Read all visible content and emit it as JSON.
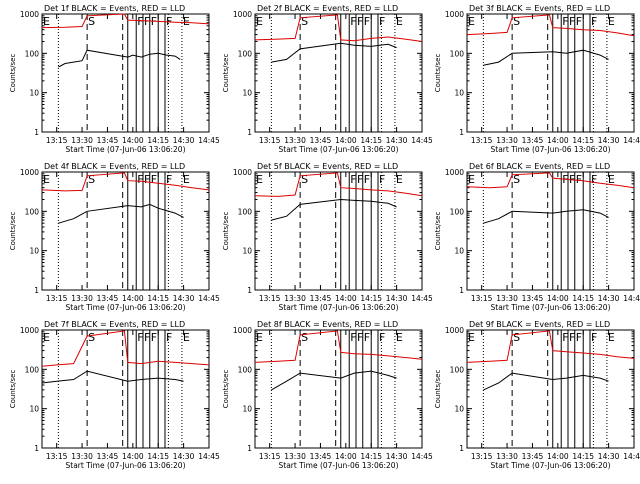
{
  "figure": {
    "panels": [
      {
        "title": "Det 1f BLACK = Events, RED = LLD"
      },
      {
        "title": "Det 2f BLACK = Events, RED = LLD"
      },
      {
        "title": "Det 3f BLACK = Events, RED = LLD"
      },
      {
        "title": "Det 4f BLACK = Events, RED = LLD"
      },
      {
        "title": "Det 5f BLACK = Events, RED = LLD"
      },
      {
        "title": "Det 6f BLACK = Events, RED = LLD"
      },
      {
        "title": "Det 7f BLACK = Events, RED = LLD"
      },
      {
        "title": "Det 8f BLACK = Events, RED = LLD"
      },
      {
        "title": "Det 9f BLACK = Events, RED = LLD"
      }
    ],
    "colors": {
      "events": "#000000",
      "lld": "#dd0000",
      "axes": "#000000"
    }
  },
  "chart_data": {
    "type": "line",
    "yscale": "log",
    "ylabel": "Counts/sec",
    "xlabel": "Start Time (07-Jun-06 13:06:20)",
    "xlim": [
      "13:06:20",
      "14:45:00"
    ],
    "ylim": [
      1,
      1000
    ],
    "x_tick_labels": [
      "13:15",
      "13:30",
      "13:45",
      "14:00",
      "14:15",
      "14:30",
      "14:45"
    ],
    "y_tick_labels": [
      "1",
      "10",
      "100",
      "1000"
    ],
    "marker_labels": [
      {
        "label": "E",
        "time": "13:06:20",
        "style": "dotted"
      },
      {
        "label": "",
        "time": "13:16",
        "style": "dotted"
      },
      {
        "label": "S",
        "time": "13:33",
        "style": "dashed"
      },
      {
        "label": "",
        "time": "13:54",
        "style": "dashed"
      },
      {
        "label": "",
        "time": "13:57",
        "style": "solid"
      },
      {
        "label": "F",
        "time": "14:02",
        "style": "solid"
      },
      {
        "label": "F",
        "time": "14:06",
        "style": "solid"
      },
      {
        "label": "F",
        "time": "14:10",
        "style": "solid"
      },
      {
        "label": "",
        "time": "14:15",
        "style": "solid"
      },
      {
        "label": "F",
        "time": "14:19",
        "style": "solid"
      },
      {
        "label": "",
        "time": "14:21",
        "style": "dotted"
      },
      {
        "label": "E",
        "time": "14:29",
        "style": "dotted"
      }
    ],
    "series": [
      {
        "detector": "1f",
        "segments": [
          {
            "name": "Events",
            "points": [
              [
                "13:16",
                45
              ],
              [
                "13:20",
                55
              ],
              [
                "13:25",
                60
              ],
              [
                "13:30",
                65
              ],
              [
                "13:33",
                120
              ],
              [
                "13:57",
                80
              ],
              [
                "14:00",
                90
              ],
              [
                "14:05",
                80
              ],
              [
                "14:10",
                95
              ],
              [
                "14:15",
                100
              ],
              [
                "14:20",
                90
              ],
              [
                "14:25",
                85
              ],
              [
                "14:28",
                70
              ]
            ]
          },
          {
            "name": "LLD",
            "points": [
              [
                "13:06:20",
                450
              ],
              [
                "13:20",
                460
              ],
              [
                "13:30",
                480
              ],
              [
                "13:33",
                900
              ],
              [
                "13:55",
                1000
              ],
              [
                "13:57",
                700
              ],
              [
                "14:05",
                680
              ],
              [
                "14:15",
                650
              ],
              [
                "14:25",
                620
              ],
              [
                "14:35",
                600
              ],
              [
                "14:45",
                560
              ]
            ]
          }
        ]
      },
      {
        "detector": "2f",
        "segments": [
          {
            "name": "Events",
            "points": [
              [
                "13:16",
                60
              ],
              [
                "13:25",
                70
              ],
              [
                "13:33",
                130
              ],
              [
                "13:57",
                180
              ],
              [
                "14:05",
                160
              ],
              [
                "14:15",
                150
              ],
              [
                "14:25",
                170
              ],
              [
                "14:30",
                140
              ]
            ]
          },
          {
            "name": "LLD",
            "points": [
              [
                "13:06:20",
                220
              ],
              [
                "13:20",
                230
              ],
              [
                "13:30",
                240
              ],
              [
                "13:33",
                800
              ],
              [
                "13:55",
                950
              ],
              [
                "13:57",
                220
              ],
              [
                "14:05",
                210
              ],
              [
                "14:15",
                240
              ],
              [
                "14:25",
                260
              ],
              [
                "14:35",
                230
              ],
              [
                "14:45",
                200
              ]
            ]
          }
        ]
      },
      {
        "detector": "3f",
        "segments": [
          {
            "name": "Events",
            "points": [
              [
                "13:16",
                50
              ],
              [
                "13:25",
                60
              ],
              [
                "13:33",
                100
              ],
              [
                "13:57",
                110
              ],
              [
                "14:05",
                100
              ],
              [
                "14:15",
                120
              ],
              [
                "14:25",
                90
              ],
              [
                "14:30",
                70
              ]
            ]
          },
          {
            "name": "LLD",
            "points": [
              [
                "13:06:20",
                300
              ],
              [
                "13:20",
                320
              ],
              [
                "13:30",
                340
              ],
              [
                "13:33",
                800
              ],
              [
                "13:55",
                950
              ],
              [
                "13:57",
                450
              ],
              [
                "14:05",
                430
              ],
              [
                "14:15",
                400
              ],
              [
                "14:25",
                380
              ],
              [
                "14:35",
                330
              ],
              [
                "14:45",
                280
              ]
            ]
          }
        ]
      },
      {
        "detector": "4f",
        "segments": [
          {
            "name": "Events",
            "points": [
              [
                "13:16",
                50
              ],
              [
                "13:25",
                65
              ],
              [
                "13:33",
                100
              ],
              [
                "13:57",
                140
              ],
              [
                "14:05",
                130
              ],
              [
                "14:10",
                150
              ],
              [
                "14:15",
                120
              ],
              [
                "14:25",
                90
              ],
              [
                "14:30",
                70
              ]
            ]
          },
          {
            "name": "LLD",
            "points": [
              [
                "13:06:20",
                350
              ],
              [
                "13:20",
                330
              ],
              [
                "13:30",
                340
              ],
              [
                "13:33",
                800
              ],
              [
                "13:55",
                950
              ],
              [
                "13:57",
                600
              ],
              [
                "14:05",
                580
              ],
              [
                "14:15",
                520
              ],
              [
                "14:25",
                460
              ],
              [
                "14:35",
                400
              ],
              [
                "14:45",
                350
              ]
            ]
          }
        ]
      },
      {
        "detector": "5f",
        "segments": [
          {
            "name": "Events",
            "points": [
              [
                "13:16",
                60
              ],
              [
                "13:25",
                75
              ],
              [
                "13:33",
                150
              ],
              [
                "13:57",
                200
              ],
              [
                "14:05",
                190
              ],
              [
                "14:15",
                180
              ],
              [
                "14:25",
                160
              ],
              [
                "14:30",
                130
              ]
            ]
          },
          {
            "name": "LLD",
            "points": [
              [
                "13:06:20",
                250
              ],
              [
                "13:20",
                240
              ],
              [
                "13:30",
                260
              ],
              [
                "13:33",
                800
              ],
              [
                "13:55",
                950
              ],
              [
                "13:57",
                400
              ],
              [
                "14:05",
                380
              ],
              [
                "14:15",
                350
              ],
              [
                "14:25",
                330
              ],
              [
                "14:35",
                290
              ],
              [
                "14:45",
                250
              ]
            ]
          }
        ]
      },
      {
        "detector": "6f",
        "segments": [
          {
            "name": "Events",
            "points": [
              [
                "13:16",
                50
              ],
              [
                "13:25",
                65
              ],
              [
                "13:33",
                100
              ],
              [
                "13:57",
                90
              ],
              [
                "14:05",
                100
              ],
              [
                "14:15",
                110
              ],
              [
                "14:25",
                90
              ],
              [
                "14:30",
                70
              ]
            ]
          },
          {
            "name": "LLD",
            "points": [
              [
                "13:06:20",
                420
              ],
              [
                "13:20",
                400
              ],
              [
                "13:30",
                420
              ],
              [
                "13:33",
                850
              ],
              [
                "13:55",
                950
              ],
              [
                "13:57",
                700
              ],
              [
                "14:05",
                650
              ],
              [
                "14:15",
                600
              ],
              [
                "14:25",
                520
              ],
              [
                "14:35",
                460
              ],
              [
                "14:45",
                400
              ]
            ]
          }
        ]
      },
      {
        "detector": "7f",
        "segments": [
          {
            "name": "Events",
            "points": [
              [
                "13:06:20",
                45
              ],
              [
                "13:15",
                50
              ],
              [
                "13:25",
                55
              ],
              [
                "13:33",
                90
              ],
              [
                "13:57",
                50
              ],
              [
                "14:05",
                55
              ],
              [
                "14:15",
                60
              ],
              [
                "14:25",
                55
              ],
              [
                "14:30",
                50
              ]
            ]
          },
          {
            "name": "LLD",
            "points": [
              [
                "13:06:20",
                120
              ],
              [
                "13:15",
                130
              ],
              [
                "13:25",
                140
              ],
              [
                "13:33",
                700
              ],
              [
                "13:55",
                950
              ],
              [
                "13:57",
                150
              ],
              [
                "14:05",
                140
              ],
              [
                "14:15",
                160
              ],
              [
                "14:25",
                150
              ],
              [
                "14:35",
                140
              ],
              [
                "14:45",
                130
              ]
            ]
          }
        ]
      },
      {
        "detector": "8f",
        "segments": [
          {
            "name": "Events",
            "points": [
              [
                "13:16",
                30
              ],
              [
                "13:25",
                50
              ],
              [
                "13:33",
                80
              ],
              [
                "13:57",
                60
              ],
              [
                "14:05",
                80
              ],
              [
                "14:15",
                90
              ],
              [
                "14:25",
                70
              ],
              [
                "14:30",
                60
              ]
            ]
          },
          {
            "name": "LLD",
            "points": [
              [
                "13:06:20",
                150
              ],
              [
                "13:20",
                160
              ],
              [
                "13:30",
                170
              ],
              [
                "13:33",
                750
              ],
              [
                "13:55",
                950
              ],
              [
                "13:57",
                270
              ],
              [
                "14:05",
                250
              ],
              [
                "14:15",
                240
              ],
              [
                "14:25",
                220
              ],
              [
                "14:35",
                200
              ],
              [
                "14:45",
                180
              ]
            ]
          }
        ]
      },
      {
        "detector": "9f",
        "segments": [
          {
            "name": "Events",
            "points": [
              [
                "13:16",
                30
              ],
              [
                "13:25",
                45
              ],
              [
                "13:33",
                80
              ],
              [
                "13:57",
                55
              ],
              [
                "14:05",
                60
              ],
              [
                "14:15",
                70
              ],
              [
                "14:25",
                60
              ],
              [
                "14:30",
                50
              ]
            ]
          },
          {
            "name": "LLD",
            "points": [
              [
                "13:06:20",
                150
              ],
              [
                "13:20",
                160
              ],
              [
                "13:30",
                170
              ],
              [
                "13:33",
                750
              ],
              [
                "13:55",
                950
              ],
              [
                "13:57",
                300
              ],
              [
                "14:05",
                280
              ],
              [
                "14:15",
                260
              ],
              [
                "14:25",
                240
              ],
              [
                "14:35",
                210
              ],
              [
                "14:45",
                190
              ]
            ]
          }
        ]
      }
    ]
  }
}
